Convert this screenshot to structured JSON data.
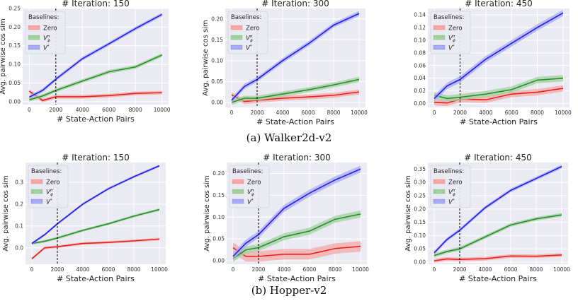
{
  "figure": {
    "captions": [
      "(a) Walker2d-v2",
      "(b) Hopper-v2"
    ]
  },
  "colors": {
    "plot_bg": "#eaeaf2",
    "grid": "#ffffff",
    "zero": "#e8201b",
    "vphi": "#2f8a2f",
    "vstar": "#1f1fe6",
    "zero_band": "#f4a8a8",
    "vphi_band": "#9fd29f",
    "vstar_band": "#a9a9f4"
  },
  "legend": {
    "title": "Baselines:",
    "labels": [
      "Zero",
      "V",
      "V"
    ],
    "sup": [
      "",
      "π",
      "*"
    ],
    "sub": [
      "",
      "ϕ",
      ""
    ]
  },
  "chart_data": [
    {
      "type": "line",
      "title": "# Iteration: 150",
      "xlabel": "# State-Action Pairs",
      "ylabel": "Avg. pairwise cos sim",
      "xlim": [
        -500,
        10500
      ],
      "ylim": [
        -0.008,
        0.25
      ],
      "xticks": [
        0,
        2000,
        4000,
        6000,
        8000,
        10000
      ],
      "yticks": [
        0.0,
        0.05,
        0.1,
        0.15,
        0.2,
        0.25
      ],
      "ytick_labels": [
        "0.00",
        "0.05",
        "0.10",
        "0.15",
        "0.20",
        "0.25"
      ],
      "vline": 2000,
      "x": [
        0,
        1000,
        2000,
        4000,
        6000,
        8000,
        10000
      ],
      "series": [
        {
          "name": "Zero",
          "values": [
            0.028,
            0.003,
            0.013,
            0.013,
            0.016,
            0.022,
            0.024
          ],
          "band": 0.005
        },
        {
          "name": "Vπϕ",
          "values": [
            0.005,
            0.015,
            0.03,
            0.055,
            0.08,
            0.093,
            0.125
          ],
          "band": 0.005
        },
        {
          "name": "V*",
          "values": [
            0.012,
            0.03,
            0.06,
            0.115,
            0.155,
            0.196,
            0.234
          ],
          "band": 0.005
        }
      ]
    },
    {
      "type": "line",
      "title": "# Iteration: 300",
      "xlabel": "# State-Action Pairs",
      "ylabel": "Avg. pairwise cos sim",
      "xlim": [
        -500,
        10500
      ],
      "ylim": [
        -0.012,
        0.225
      ],
      "xticks": [
        0,
        2000,
        4000,
        6000,
        8000,
        10000
      ],
      "yticks": [
        0.0,
        0.05,
        0.1,
        0.15,
        0.2
      ],
      "ytick_labels": [
        "0.00",
        "0.05",
        "0.10",
        "0.15",
        "0.20"
      ],
      "vline": 2000,
      "x": [
        0,
        1000,
        2000,
        4000,
        6000,
        8000,
        10000
      ],
      "series": [
        {
          "name": "Zero",
          "values": [
            0.018,
            0.002,
            0.005,
            0.01,
            0.013,
            0.017,
            0.025
          ],
          "band": 0.006
        },
        {
          "name": "Vπϕ",
          "values": [
            0.0,
            0.01,
            0.01,
            0.02,
            0.03,
            0.042,
            0.055
          ],
          "band": 0.006
        },
        {
          "name": "V*",
          "values": [
            0.005,
            0.038,
            0.055,
            0.1,
            0.14,
            0.185,
            0.213
          ],
          "band": 0.006
        }
      ]
    },
    {
      "type": "line",
      "title": "# Iteration: 450",
      "xlabel": "# State-Action Pairs",
      "ylabel": "",
      "xlim": [
        -500,
        10500
      ],
      "ylim": [
        -0.006,
        0.15
      ],
      "xticks": [
        0,
        2000,
        4000,
        6000,
        8000,
        10000
      ],
      "yticks": [
        0.0,
        0.02,
        0.04,
        0.06,
        0.08,
        0.1,
        0.12,
        0.14
      ],
      "ytick_labels": [
        "0.00",
        "0.02",
        "0.04",
        "0.06",
        "0.08",
        "0.10",
        "0.12",
        "0.14"
      ],
      "vline": 2000,
      "x": [
        0,
        1000,
        2000,
        4000,
        6000,
        8000,
        10000
      ],
      "series": [
        {
          "name": "Zero",
          "values": [
            0.002,
            0.001,
            0.007,
            0.006,
            0.015,
            0.018,
            0.024
          ],
          "band": 0.005
        },
        {
          "name": "Vπϕ",
          "values": [
            0.013,
            0.008,
            0.01,
            0.015,
            0.022,
            0.037,
            0.04
          ],
          "band": 0.005
        },
        {
          "name": "V*",
          "values": [
            0.008,
            0.028,
            0.038,
            0.07,
            0.095,
            0.12,
            0.143
          ],
          "band": 0.005
        }
      ]
    },
    {
      "type": "line",
      "title": "# Iteration: 150",
      "xlabel": "# State-Action Pairs",
      "ylabel": "Avg. pairwise cos sim",
      "xlim": [
        -500,
        10500
      ],
      "ylim": [
        -0.075,
        0.39
      ],
      "xticks": [
        0,
        2000,
        4000,
        6000,
        8000,
        10000
      ],
      "yticks": [
        0.0,
        0.1,
        0.2,
        0.3
      ],
      "ytick_labels": [
        "0.0",
        "0.1",
        "0.2",
        "0.3"
      ],
      "vline": 2000,
      "x": [
        0,
        1000,
        2000,
        4000,
        6000,
        8000,
        10000
      ],
      "series": [
        {
          "name": "Zero",
          "values": [
            -0.05,
            0.0,
            0.005,
            0.02,
            0.025,
            0.032,
            0.04
          ],
          "band": 0.006
        },
        {
          "name": "Vπϕ",
          "values": [
            0.02,
            0.03,
            0.045,
            0.08,
            0.11,
            0.145,
            0.175
          ],
          "band": 0.006
        },
        {
          "name": "V*",
          "values": [
            0.02,
            0.06,
            0.11,
            0.2,
            0.27,
            0.325,
            0.375
          ],
          "band": 0.006
        }
      ]
    },
    {
      "type": "line",
      "title": "# Iteration: 300",
      "xlabel": "# State-Action Pairs",
      "ylabel": "Avg. pairwise cos sim",
      "xlim": [
        -500,
        10500
      ],
      "ylim": [
        -0.008,
        0.225
      ],
      "xticks": [
        0,
        2000,
        4000,
        6000,
        8000,
        10000
      ],
      "yticks": [
        0.0,
        0.05,
        0.1,
        0.15,
        0.2
      ],
      "ytick_labels": [
        "0.00",
        "0.05",
        "0.10",
        "0.15",
        "0.20"
      ],
      "vline": 2000,
      "x": [
        0,
        1000,
        2000,
        4000,
        6000,
        8000,
        10000
      ],
      "series": [
        {
          "name": "Zero",
          "values": [
            0.03,
            0.01,
            0.01,
            0.015,
            0.015,
            0.028,
            0.033
          ],
          "band": 0.012
        },
        {
          "name": "Vπϕ",
          "values": [
            0.005,
            0.025,
            0.03,
            0.055,
            0.068,
            0.095,
            0.107
          ],
          "band": 0.008
        },
        {
          "name": "V*",
          "values": [
            0.01,
            0.04,
            0.06,
            0.12,
            0.155,
            0.185,
            0.21
          ],
          "band": 0.008
        }
      ]
    },
    {
      "type": "line",
      "title": "# Iteration: 450",
      "xlabel": "# State-Action Pairs",
      "ylabel": "Avg. pairwise cos sim",
      "xlim": [
        -500,
        10500
      ],
      "ylim": [
        -0.008,
        0.375
      ],
      "xticks": [
        0,
        2000,
        4000,
        6000,
        8000,
        10000
      ],
      "yticks": [
        0.0,
        0.05,
        0.1,
        0.15,
        0.2,
        0.25,
        0.3,
        0.35
      ],
      "ytick_labels": [
        "0.00",
        "0.05",
        "0.10",
        "0.15",
        "0.20",
        "0.25",
        "0.30",
        "0.35"
      ],
      "vline": 2000,
      "x": [
        0,
        1000,
        2000,
        4000,
        6000,
        8000,
        10000
      ],
      "series": [
        {
          "name": "Zero",
          "values": [
            0.005,
            0.012,
            0.01,
            0.013,
            0.023,
            0.022,
            0.027
          ],
          "band": 0.007
        },
        {
          "name": "Vπϕ",
          "values": [
            0.025,
            0.04,
            0.05,
            0.095,
            0.14,
            0.163,
            0.178
          ],
          "band": 0.007
        },
        {
          "name": "V*",
          "values": [
            0.035,
            0.085,
            0.12,
            0.205,
            0.27,
            0.315,
            0.36
          ],
          "band": 0.007
        }
      ]
    }
  ]
}
